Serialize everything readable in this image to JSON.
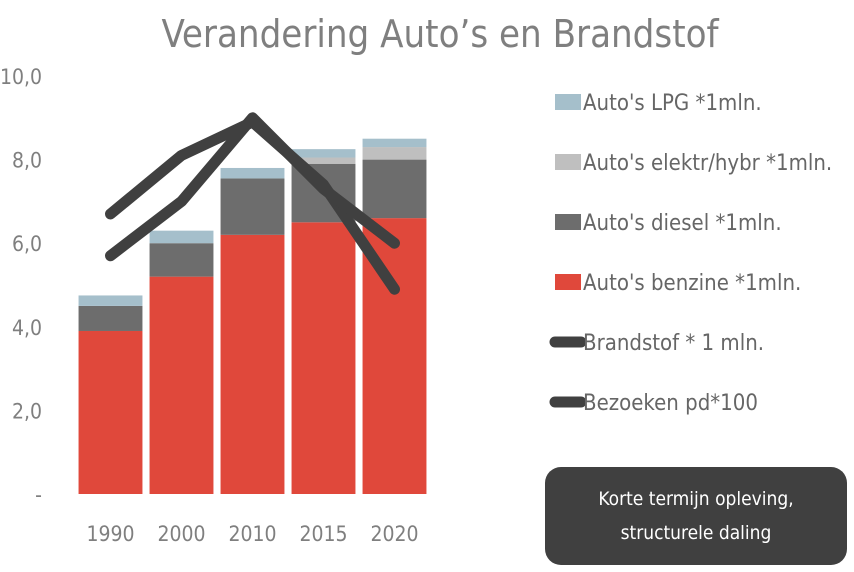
{
  "chart_data": {
    "type": "bar",
    "title": "Verandering Auto’s en Brandstof",
    "stacked": true,
    "categories": [
      "1990",
      "2000",
      "2010",
      "2015",
      "2020"
    ],
    "ylim": [
      0,
      10
    ],
    "yticks": [
      0,
      2,
      4,
      6,
      8,
      10
    ],
    "ytick_labels": [
      "-",
      "2,0",
      "4,0",
      "6,0",
      "8,0",
      "10,0"
    ],
    "grid": false,
    "legend_position": "right",
    "series": [
      {
        "name": "Auto's benzine *1mln.",
        "kind": "bar",
        "color": "#e0483b",
        "values": [
          3.9,
          5.2,
          6.2,
          6.5,
          6.6
        ]
      },
      {
        "name": "Auto's diesel  *1mln.",
        "kind": "bar",
        "color": "#6d6d6d",
        "values": [
          0.6,
          0.8,
          1.35,
          1.4,
          1.4
        ]
      },
      {
        "name": "Auto's elektr/hybr  *1mln.",
        "kind": "bar",
        "color": "#bfbfbf",
        "values": [
          0.0,
          0.0,
          0.0,
          0.15,
          0.3
        ]
      },
      {
        "name": "Auto's LPG  *1mln.",
        "kind": "bar",
        "color": "#a5bfcb",
        "values": [
          0.25,
          0.3,
          0.25,
          0.2,
          0.2
        ]
      },
      {
        "name": "Brandstof * 1 mln.",
        "kind": "line",
        "color": "#404040",
        "values": [
          6.7,
          8.1,
          8.9,
          7.4,
          4.9
        ]
      },
      {
        "name": "Bezoeken pd*100",
        "kind": "line",
        "color": "#404040",
        "values": [
          5.7,
          7.0,
          9.0,
          7.3,
          6.0
        ]
      }
    ],
    "legend_order": [
      "Auto's LPG  *1mln.",
      "Auto's elektr/hybr  *1mln.",
      "Auto's diesel  *1mln.",
      "Auto's benzine *1mln.",
      "Brandstof * 1 mln.",
      "Bezoeken pd*100"
    ]
  },
  "annotation": {
    "line1": "Korte termijn opleving,",
    "line2": "structurele daling",
    "background": "#404040",
    "color": "#ffffff"
  }
}
